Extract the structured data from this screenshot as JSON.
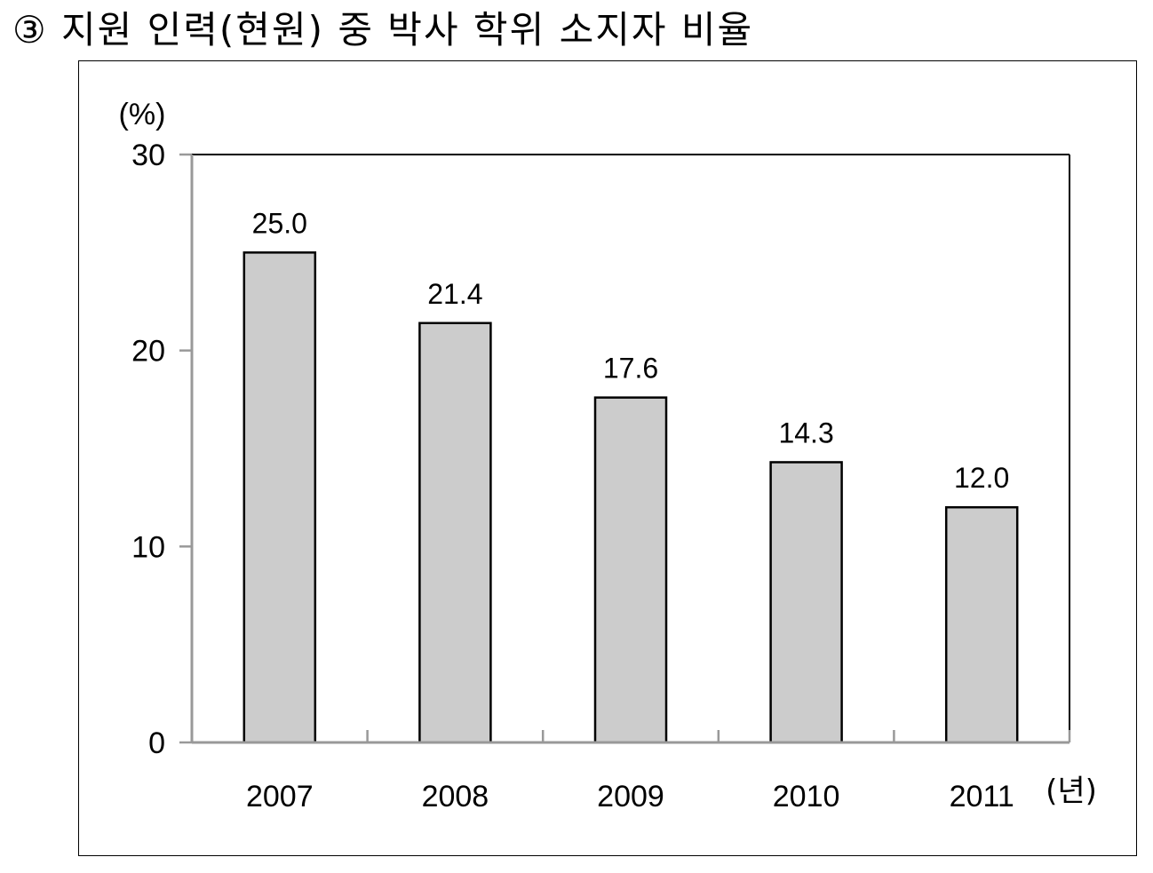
{
  "title": "③ 지원 인력(현원) 중 박사 학위 소지자 비율",
  "chart_data": {
    "type": "bar",
    "title": "③ 지원 인력(현원) 중 박사 학위 소지자 비율",
    "categories": [
      "2007",
      "2008",
      "2009",
      "2010",
      "2011"
    ],
    "values": [
      25.0,
      21.4,
      17.6,
      14.3,
      12.0
    ],
    "value_labels": [
      "25.0",
      "21.4",
      "17.6",
      "14.3",
      "12.0"
    ],
    "xlabel": "(년)",
    "ylabel": "(%)",
    "ylim": [
      0,
      30
    ],
    "yticks": [
      "0",
      "10",
      "20",
      "30"
    ],
    "grid": false,
    "legend": "none",
    "bar_color": "#cccccc",
    "bar_stroke": "#000000",
    "axis_color": "#999999"
  }
}
